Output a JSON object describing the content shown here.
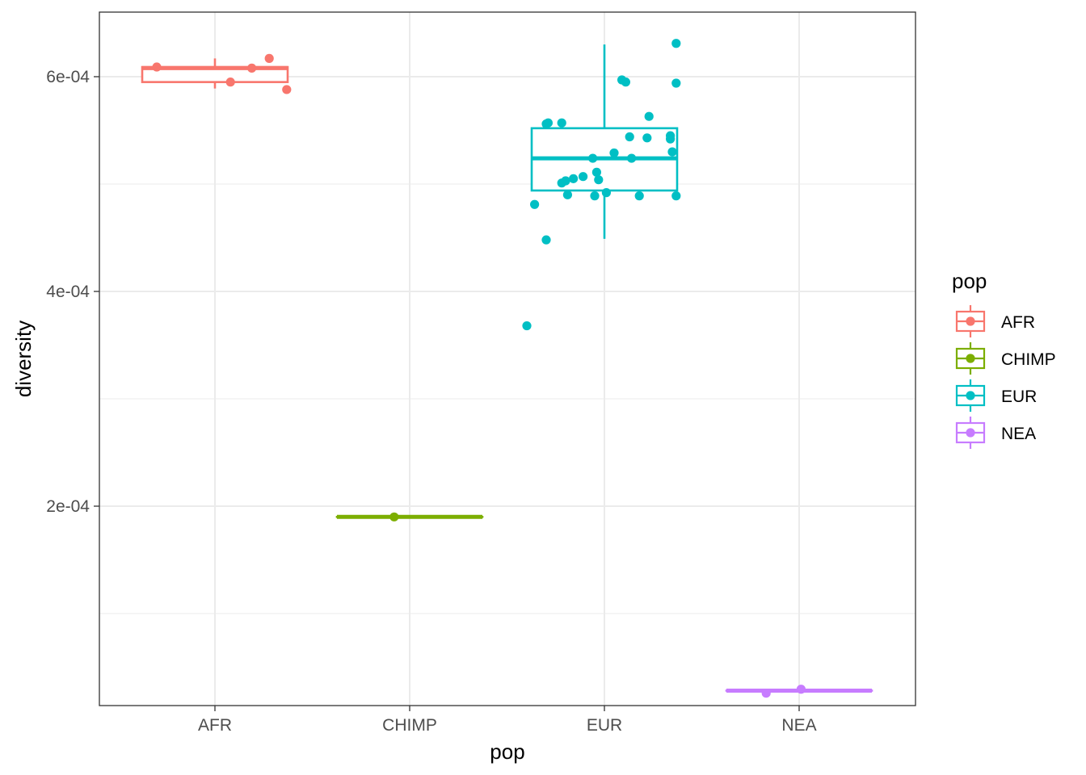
{
  "chart_data": {
    "type": "boxplot",
    "xlabel": "pop",
    "ylabel": "diversity",
    "categories": [
      "AFR",
      "CHIMP",
      "EUR",
      "NEA"
    ],
    "y_ticks": [
      0.0002,
      0.0004,
      0.0006
    ],
    "y_tick_labels": [
      "2e-04",
      "4e-04",
      "6e-04"
    ],
    "ylim": [
      0.0,
      0.00066
    ],
    "grid": true,
    "legend": {
      "title": "pop",
      "position": "right",
      "entries": [
        "AFR",
        "CHIMP",
        "EUR",
        "NEA"
      ]
    },
    "colors": {
      "AFR": "#F8766D",
      "CHIMP": "#7CAE00",
      "EUR": "#00BFC4",
      "NEA": "#C77CFF"
    },
    "boxes": [
      {
        "category": "AFR",
        "min": 0.000589,
        "q1": 0.000595,
        "median": 0.000608,
        "q3": 0.000609,
        "max": 0.000617
      },
      {
        "category": "CHIMP",
        "min": 0.00019,
        "q1": 0.00019,
        "median": 0.00019,
        "q3": 0.00019,
        "max": 0.00019
      },
      {
        "category": "EUR",
        "min": 0.000449,
        "q1": 0.000494,
        "median": 0.000524,
        "q3": 0.000552,
        "max": 0.00063
      },
      {
        "category": "NEA",
        "min": 2.82e-05,
        "q1": 2.82e-05,
        "median": 2.82e-05,
        "q3": 2.82e-05,
        "max": 2.82e-05
      }
    ],
    "points": [
      {
        "category": "AFR",
        "jitter": -0.3,
        "y": 0.000609
      },
      {
        "category": "AFR",
        "jitter": 0.08,
        "y": 0.000595
      },
      {
        "category": "AFR",
        "jitter": 0.19,
        "y": 0.000608
      },
      {
        "category": "AFR",
        "jitter": 0.28,
        "y": 0.000617
      },
      {
        "category": "AFR",
        "jitter": 0.37,
        "y": 0.000588
      },
      {
        "category": "CHIMP",
        "jitter": -0.08,
        "y": 0.00019
      },
      {
        "category": "EUR",
        "jitter": -0.4,
        "y": 0.000368
      },
      {
        "category": "EUR",
        "jitter": -0.36,
        "y": 0.000481
      },
      {
        "category": "EUR",
        "jitter": -0.3,
        "y": 0.000448
      },
      {
        "category": "EUR",
        "jitter": -0.3,
        "y": 0.000556
      },
      {
        "category": "EUR",
        "jitter": -0.29,
        "y": 0.000557
      },
      {
        "category": "EUR",
        "jitter": -0.22,
        "y": 0.000557
      },
      {
        "category": "EUR",
        "jitter": -0.22,
        "y": 0.000501
      },
      {
        "category": "EUR",
        "jitter": -0.2,
        "y": 0.000503
      },
      {
        "category": "EUR",
        "jitter": -0.19,
        "y": 0.00049
      },
      {
        "category": "EUR",
        "jitter": -0.16,
        "y": 0.000505
      },
      {
        "category": "EUR",
        "jitter": -0.11,
        "y": 0.000507
      },
      {
        "category": "EUR",
        "jitter": -0.06,
        "y": 0.000524
      },
      {
        "category": "EUR",
        "jitter": -0.05,
        "y": 0.000489
      },
      {
        "category": "EUR",
        "jitter": -0.04,
        "y": 0.000511
      },
      {
        "category": "EUR",
        "jitter": -0.03,
        "y": 0.000504
      },
      {
        "category": "EUR",
        "jitter": 0.01,
        "y": 0.000492
      },
      {
        "category": "EUR",
        "jitter": 0.05,
        "y": 0.000529
      },
      {
        "category": "EUR",
        "jitter": 0.09,
        "y": 0.000597
      },
      {
        "category": "EUR",
        "jitter": 0.11,
        "y": 0.000595
      },
      {
        "category": "EUR",
        "jitter": 0.13,
        "y": 0.000544
      },
      {
        "category": "EUR",
        "jitter": 0.14,
        "y": 0.000524
      },
      {
        "category": "EUR",
        "jitter": 0.18,
        "y": 0.000489
      },
      {
        "category": "EUR",
        "jitter": 0.22,
        "y": 0.000543
      },
      {
        "category": "EUR",
        "jitter": 0.23,
        "y": 0.000563
      },
      {
        "category": "EUR",
        "jitter": 0.34,
        "y": 0.000545
      },
      {
        "category": "EUR",
        "jitter": 0.34,
        "y": 0.000542
      },
      {
        "category": "EUR",
        "jitter": 0.35,
        "y": 0.00053
      },
      {
        "category": "EUR",
        "jitter": 0.37,
        "y": 0.000489
      },
      {
        "category": "EUR",
        "jitter": 0.37,
        "y": 0.000594
      },
      {
        "category": "EUR",
        "jitter": 0.37,
        "y": 0.000631
      },
      {
        "category": "NEA",
        "jitter": -0.17,
        "y": 2.58e-05
      },
      {
        "category": "NEA",
        "jitter": 0.01,
        "y": 2.95e-05
      }
    ]
  }
}
